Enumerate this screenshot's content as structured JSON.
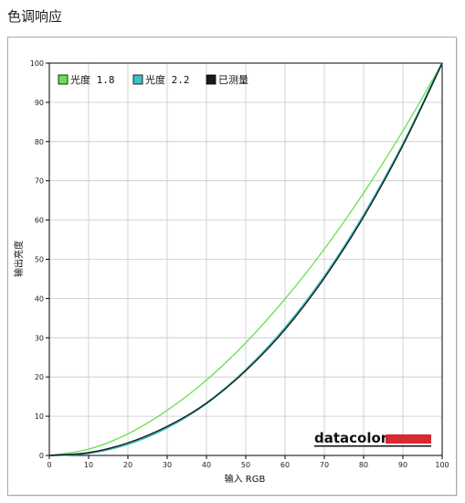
{
  "page": {
    "title": "色调响应"
  },
  "colors": {
    "gamma18": "#66e24a",
    "gamma22": "#3cc0c0",
    "measured": "#1a1a1a",
    "grid": "#c8c8c8",
    "logo_bar": "#d9282e"
  },
  "logo": {
    "text": "datacolor"
  },
  "chart_data": {
    "type": "line",
    "title": "",
    "xlabel": "输入 RGB",
    "ylabel": "输出亮度",
    "xlim": [
      0,
      100
    ],
    "ylim": [
      0,
      100
    ],
    "x_ticks": [
      "0",
      "10",
      "20",
      "30",
      "40",
      "50",
      "60",
      "70",
      "80",
      "90",
      "100"
    ],
    "y_ticks": [
      "0",
      "10",
      "20",
      "30",
      "40",
      "50",
      "60",
      "70",
      "80",
      "90",
      "100"
    ],
    "grid": true,
    "legend_position": "top-left",
    "legend": [
      "光度 1.8",
      "光度 2.2",
      "已测量"
    ],
    "x": [
      0,
      10,
      20,
      30,
      40,
      50,
      60,
      70,
      80,
      90,
      100
    ],
    "series": [
      {
        "name": "光度 1.8",
        "color": "#66e24a",
        "values": [
          0,
          1.6,
          5.5,
          11.5,
          19.2,
          28.7,
          39.9,
          52.6,
          66.9,
          82.7,
          100
        ]
      },
      {
        "name": "光度 2.2",
        "color": "#3cc0c0",
        "values": [
          0,
          0.6,
          2.9,
          7.1,
          13.3,
          21.8,
          32.5,
          45.6,
          61.2,
          79.3,
          100
        ]
      },
      {
        "name": "已测量",
        "color": "#1a1a1a",
        "values": [
          0,
          0.7,
          3.2,
          7.4,
          13.3,
          21.6,
          32.1,
          45.2,
          60.8,
          79.0,
          100
        ]
      }
    ]
  }
}
